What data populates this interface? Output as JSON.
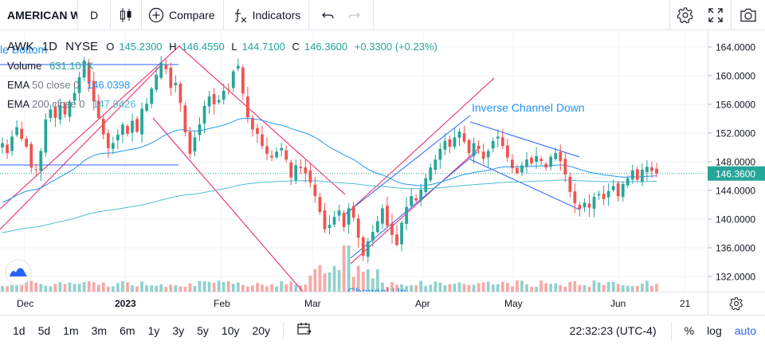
{
  "toolbar": {
    "symbol": "AMERICAN WATER WORKS",
    "interval": "D",
    "compare_label": "Compare",
    "indicators_label": "Indicators",
    "icons": [
      "candles-icon",
      "plus-circle-icon",
      "fx-icon",
      "undo-icon",
      "redo-icon",
      "gear-icon",
      "fullscreen-icon",
      "camera-icon"
    ]
  },
  "legend": {
    "ticker": "AWK",
    "interval": "1D",
    "exchange": "NYSE",
    "open_label": "O",
    "open": "145.2300",
    "high_label": "H",
    "high": "146.4550",
    "low_label": "L",
    "low": "144.7100",
    "close_label": "C",
    "close": "146.3600",
    "change": "+0.3300 (+0.23%)",
    "volume_name": "Volume",
    "volume_value": "631.107K",
    "ema50_name": "EMA",
    "ema50_params": "50 close 0",
    "ema50_value": "146.0398",
    "ema200_name": "EMA",
    "ema200_params": "200 close 0",
    "ema200_value": "147.9426"
  },
  "drawings": {
    "inverse_channel_label": "Inverse Channel Down",
    "double_bottom_label": "le Bottom",
    "channel_up_label": "Channel Up"
  },
  "price_axis": {
    "last_price": "146.3600",
    "ticks": [
      "164.0000",
      "160.0000",
      "156.0000",
      "152.0000",
      "148.0000",
      "144.0000",
      "140.0000",
      "136.0000",
      "132.0000"
    ]
  },
  "time_axis": {
    "labels": [
      "Dec",
      "2023",
      "Feb",
      "Mar",
      "Apr",
      "May",
      "Jun",
      "21"
    ]
  },
  "bottombar": {
    "ranges": [
      "1d",
      "5d",
      "1m",
      "3m",
      "6m",
      "1y",
      "3y",
      "5y",
      "10y",
      "20y"
    ],
    "clock": "22:32:23 (UTC-4)",
    "percent_label": "%",
    "log_label": "log",
    "auto_label": "auto"
  },
  "colors": {
    "up": "#26a69a",
    "down": "#ef5350",
    "ema50": "#2196f3",
    "ema200": "#4dbdd3",
    "channel_pink": "#e91e63",
    "channel_blue": "#2962ff",
    "last_price_bg": "#26a69a"
  },
  "chart_data": {
    "type": "candlestick",
    "y_range": [
      130,
      166
    ],
    "closes": [
      150.6,
      149.2,
      151.5,
      152.8,
      151.2,
      150.1,
      147.2,
      146.9,
      149.5,
      153.9,
      155.3,
      154.1,
      155.9,
      154.6,
      156.4,
      157.6,
      159.8,
      162.1,
      158.9,
      156.4,
      154.1,
      151.8,
      149.9,
      150.6,
      151.8,
      153.2,
      151.9,
      153.7,
      152.2,
      155.4,
      156.1,
      158.2,
      160.1,
      161.8,
      160.9,
      158.3,
      159.0,
      156.2,
      152.1,
      149.1,
      151.4,
      153.2,
      155.8,
      157.1,
      156.0,
      156.6,
      157.9,
      158.1,
      160.6,
      161.4,
      157.5,
      154.2,
      152.5,
      151.9,
      150.2,
      149.1,
      148.6,
      149.4,
      149.9,
      148.3,
      145.8,
      147.5,
      147.1,
      146.4,
      145.1,
      143.2,
      141.0,
      138.6,
      139.2,
      140.3,
      141.2,
      138.9,
      141.5,
      140.2,
      137.4,
      134.9,
      136.9,
      138.2,
      139.7,
      141.5,
      139.1,
      137.8,
      136.4,
      139.5,
      141.7,
      143.2,
      142.6,
      144.1,
      145.7,
      147.2,
      148.3,
      149.8,
      150.9,
      150.1,
      151.4,
      152.2,
      150.8,
      149.2,
      150.6,
      149.8,
      148.4,
      149.5,
      150.9,
      151.5,
      150.2,
      148.6,
      147.1,
      146.4,
      147.5,
      148.3,
      147.8,
      148.8,
      148.1,
      147.2,
      148.7,
      149.2,
      148.1,
      146.2,
      143.8,
      142.2,
      141.4,
      142.3,
      141.6,
      143.1,
      143.5,
      142.8,
      143.9,
      144.6,
      143.2,
      144.9,
      145.7,
      146.8,
      145.5,
      146.9,
      147.3,
      146.7,
      146.36
    ],
    "series": [
      {
        "name": "EMA 50 close 0"
      },
      {
        "name": "EMA 200 close 0"
      }
    ]
  }
}
